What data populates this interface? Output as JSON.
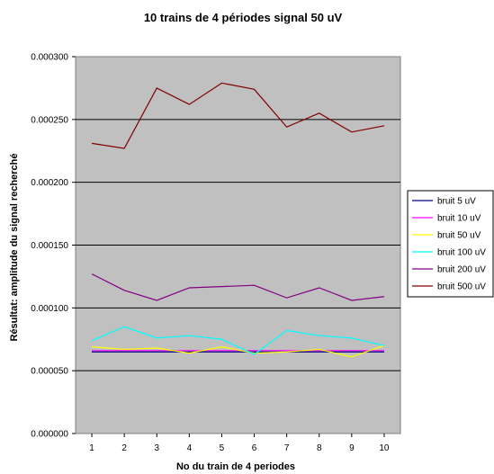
{
  "chart_data": {
    "type": "line",
    "title": "10 trains de 4 périodes signal 50 uV",
    "xlabel": "No du train de 4 periodes",
    "ylabel": "Résultat: amplitude du signal recherché",
    "x": [
      1,
      2,
      3,
      4,
      5,
      6,
      7,
      8,
      9,
      10
    ],
    "ylim": [
      0,
      0.0003
    ],
    "yticks": [
      "0.000000",
      "0.000050",
      "0.000100",
      "0.000150",
      "0.000200",
      "0.000250",
      "0.000300"
    ],
    "grid": true,
    "legend_position": "right",
    "plot_background": "#c0c0c0",
    "series": [
      {
        "name": "bruit 5 uV",
        "color": "#000080",
        "values": [
          6.5e-05,
          6.5e-05,
          6.5e-05,
          6.5e-05,
          6.5e-05,
          6.5e-05,
          6.5e-05,
          6.5e-05,
          6.5e-05,
          6.5e-05
        ]
      },
      {
        "name": "bruit 10 uV",
        "color": "#ff00ff",
        "values": [
          6.6e-05,
          6.6e-05,
          6.6e-05,
          6.6e-05,
          6.6e-05,
          6.6e-05,
          6.6e-05,
          6.6e-05,
          6.6e-05,
          6.6e-05
        ]
      },
      {
        "name": "bruit 50 uV",
        "color": "#ffff00",
        "values": [
          6.9e-05,
          6.7e-05,
          6.8e-05,
          6.4e-05,
          6.9e-05,
          6.4e-05,
          6.5e-05,
          6.7e-05,
          6.1e-05,
          7e-05
        ]
      },
      {
        "name": "bruit 100 uV",
        "color": "#00ffff",
        "values": [
          7.4e-05,
          8.5e-05,
          7.6e-05,
          7.8e-05,
          7.5e-05,
          6.3e-05,
          8.2e-05,
          7.8e-05,
          7.6e-05,
          7e-05
        ]
      },
      {
        "name": "bruit 200 uV",
        "color": "#800080",
        "values": [
          0.000127,
          0.000114,
          0.000106,
          0.000116,
          0.000117,
          0.000118,
          0.000108,
          0.000116,
          0.000106,
          0.000109
        ]
      },
      {
        "name": "bruit 500 uV",
        "color": "#800000",
        "values": [
          0.000231,
          0.000227,
          0.000275,
          0.000262,
          0.000279,
          0.000274,
          0.000244,
          0.000255,
          0.00024,
          0.000245
        ]
      }
    ]
  }
}
